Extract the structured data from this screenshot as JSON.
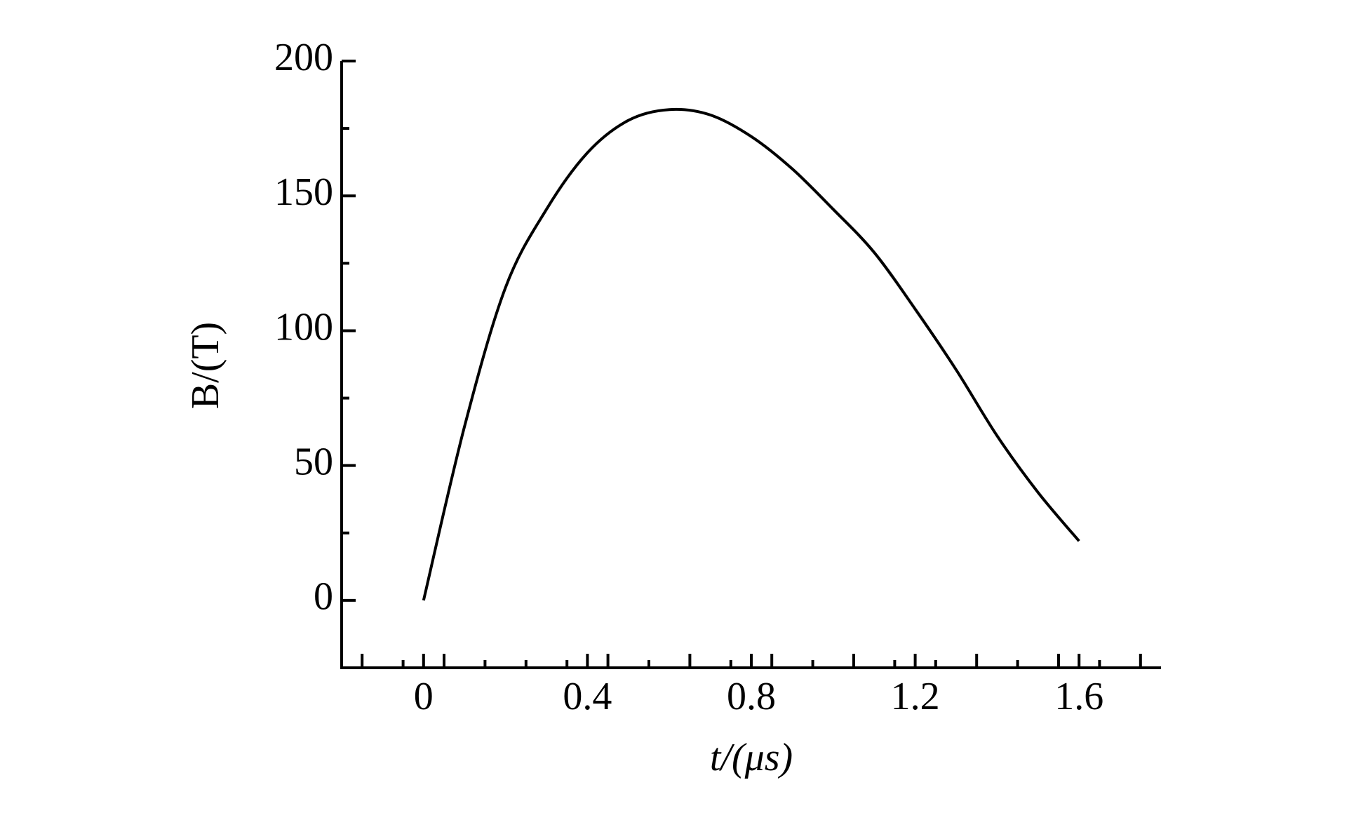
{
  "chart_data": {
    "type": "line",
    "x_label": "t/(μs)",
    "y_label": "B/(T)",
    "x": [
      0,
      0.1,
      0.2,
      0.3,
      0.4,
      0.5,
      0.6,
      0.7,
      0.8,
      0.9,
      1.0,
      1.1,
      1.2,
      1.3,
      1.4,
      1.5,
      1.6
    ],
    "series": [
      {
        "name": "B",
        "color": "#000000",
        "values": [
          0,
          64.5,
          116,
          145,
          166,
          178,
          182,
          180,
          172,
          160,
          145,
          129,
          108,
          85.5,
          61,
          40,
          22
        ]
      }
    ],
    "xlim": [
      -0.2,
      1.8
    ],
    "xticks": [
      0,
      0.4,
      0.8,
      1.2,
      1.6
    ],
    "ylim": [
      -25,
      200
    ],
    "yticks": [
      0,
      50,
      100,
      150,
      200
    ]
  }
}
